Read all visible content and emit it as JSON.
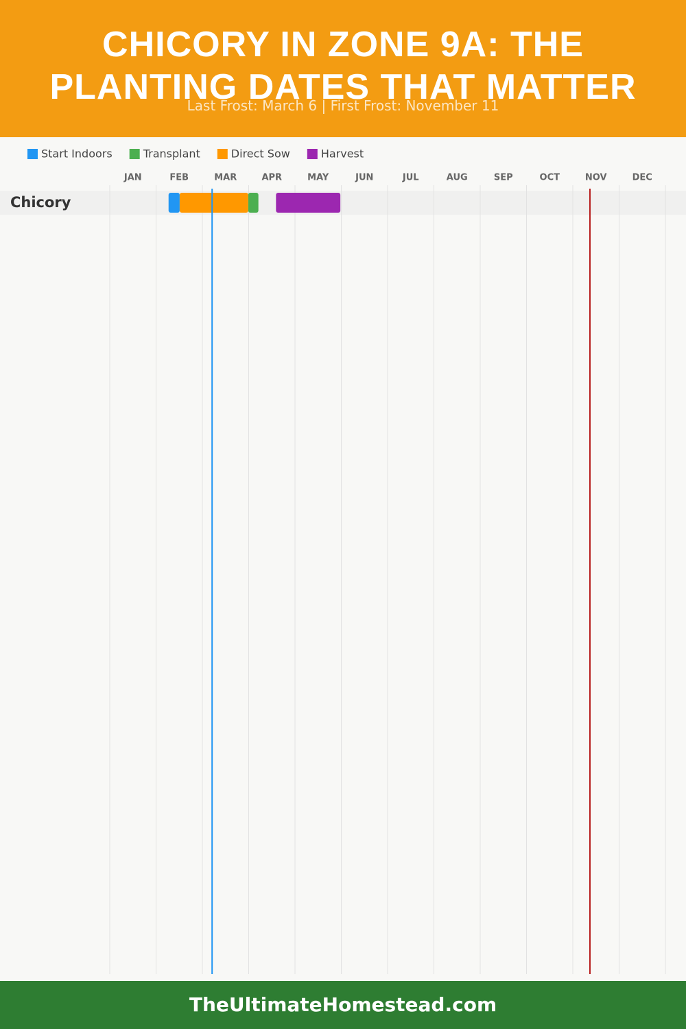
{
  "chart_data": {
    "type": "gantt",
    "title": "CHICORY IN ZONE 9A: THE PLANTING DATES THAT MATTER",
    "subtitle": "Last Frost: March 6 | First Frost: November 11",
    "footer": "TheUltimateHomestead.com",
    "months": [
      "JAN",
      "FEB",
      "MAR",
      "APR",
      "MAY",
      "JUN",
      "JUL",
      "AUG",
      "SEP",
      "OCT",
      "NOV",
      "DEC"
    ],
    "xlim": [
      0,
      12
    ],
    "phases": [
      {
        "name": "Start Indoors",
        "color": "#2196f3"
      },
      {
        "name": "Transplant",
        "color": "#4caf50"
      },
      {
        "name": "Direct Sow",
        "color": "#ff9800"
      },
      {
        "name": "Harvest",
        "color": "#9c27b0"
      }
    ],
    "rows": [
      {
        "name": "Chicory",
        "tasks": [
          {
            "phase": 0,
            "start": 1.27,
            "end": 1.51
          },
          {
            "phase": 1,
            "start": 2.99,
            "end": 3.21
          },
          {
            "phase": 2,
            "start": 1.51,
            "end": 2.99
          },
          {
            "phase": 3,
            "start": 3.59,
            "end": 4.98
          }
        ]
      }
    ],
    "frost_lines": [
      {
        "value": 2.21,
        "color": "#2196f3"
      },
      {
        "value": 10.37,
        "color": "#b71c1c"
      }
    ]
  }
}
